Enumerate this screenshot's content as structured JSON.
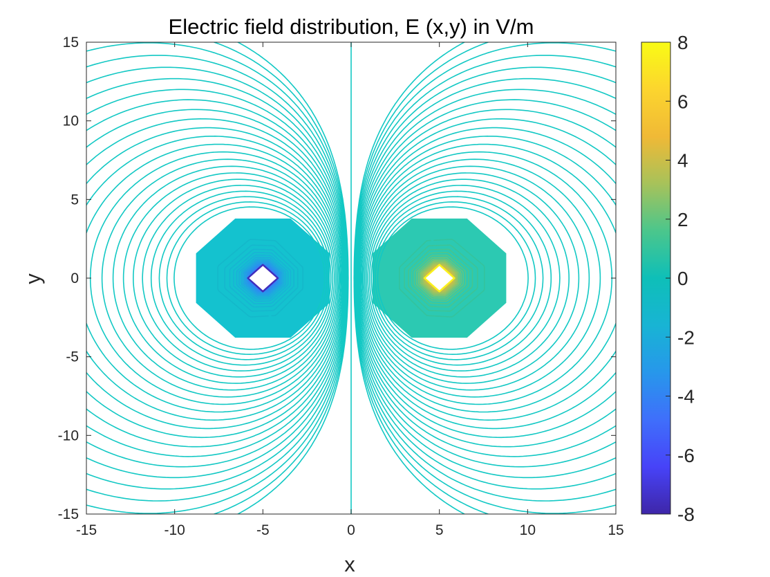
{
  "chart_data": {
    "type": "contour",
    "title": "Electric field distribution, E (x,y) in V/m",
    "xlabel": "x",
    "ylabel": "y",
    "xlim": [
      -15,
      15
    ],
    "ylim": [
      -15,
      15
    ],
    "xticks": [
      "-15",
      "-10",
      "-5",
      "0",
      "5",
      "10",
      "15"
    ],
    "yticks": [
      "-15",
      "-10",
      "-5",
      "0",
      "5",
      "10",
      "15"
    ],
    "grid": false,
    "charges": [
      {
        "name": "negative charge",
        "x": -5,
        "y": 0,
        "sign": -1
      },
      {
        "name": "positive charge",
        "x": 5,
        "y": 0,
        "sign": 1
      }
    ],
    "colorbar": {
      "min": -8,
      "max": 8,
      "ticks": [
        "8",
        "6",
        "4",
        "2",
        "0",
        "-2",
        "-4",
        "-6",
        "-8"
      ],
      "colormap": "parula",
      "colors": [
        "#3e26a8",
        "#4743f8",
        "#3f6ffb",
        "#2797eb",
        "#18b4d4",
        "#0ebfb8",
        "#4bc68c",
        "#a7c25a",
        "#f0b936",
        "#fcd52e",
        "#f9fb15"
      ]
    },
    "contour_color": "#12c8c4",
    "near_field_levels": [
      -7,
      -6,
      -5,
      -4,
      -3,
      -2.5,
      -2,
      -1.5,
      -1.2,
      1.2,
      1.5,
      2,
      2.5,
      3,
      4,
      5,
      6,
      7
    ],
    "far_field_level_count": 46
  }
}
